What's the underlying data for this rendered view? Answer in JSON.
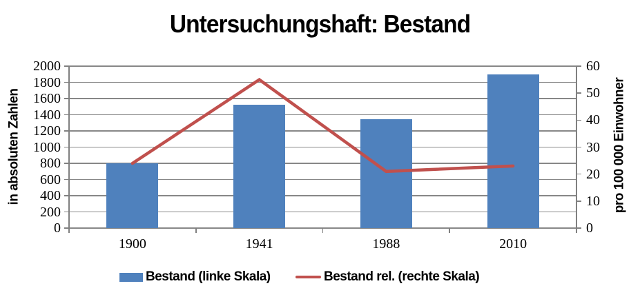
{
  "chart_data": {
    "type": "combo_bar_line",
    "title": "Untersuchungshaft: Bestand",
    "categories": [
      "1900",
      "1941",
      "1988",
      "2010"
    ],
    "series": [
      {
        "name": "Bestand (linke Skala)",
        "type": "bar",
        "axis": "left",
        "color": "#4F81BD",
        "values": [
          800,
          1520,
          1345,
          1895
        ]
      },
      {
        "name": "Bestand rel. (rechte Skala)",
        "type": "line",
        "axis": "right",
        "color": "#C0504D",
        "values": [
          24,
          55,
          21,
          23
        ]
      }
    ],
    "left_axis": {
      "label": "in absoluten Zahlen",
      "min": 0,
      "max": 2000,
      "step": 200,
      "ticks": [
        "0",
        "200",
        "400",
        "600",
        "800",
        "1000",
        "1200",
        "1400",
        "1600",
        "1800",
        "2000"
      ]
    },
    "right_axis": {
      "label": "pro 100 000 Einwohner",
      "min": 0,
      "max": 60,
      "step": 10,
      "ticks": [
        "0",
        "10",
        "20",
        "30",
        "40",
        "50",
        "60"
      ]
    },
    "grid": true,
    "gridline_color": "#878787",
    "legend_position": "bottom",
    "background": "#FFFFFF"
  }
}
